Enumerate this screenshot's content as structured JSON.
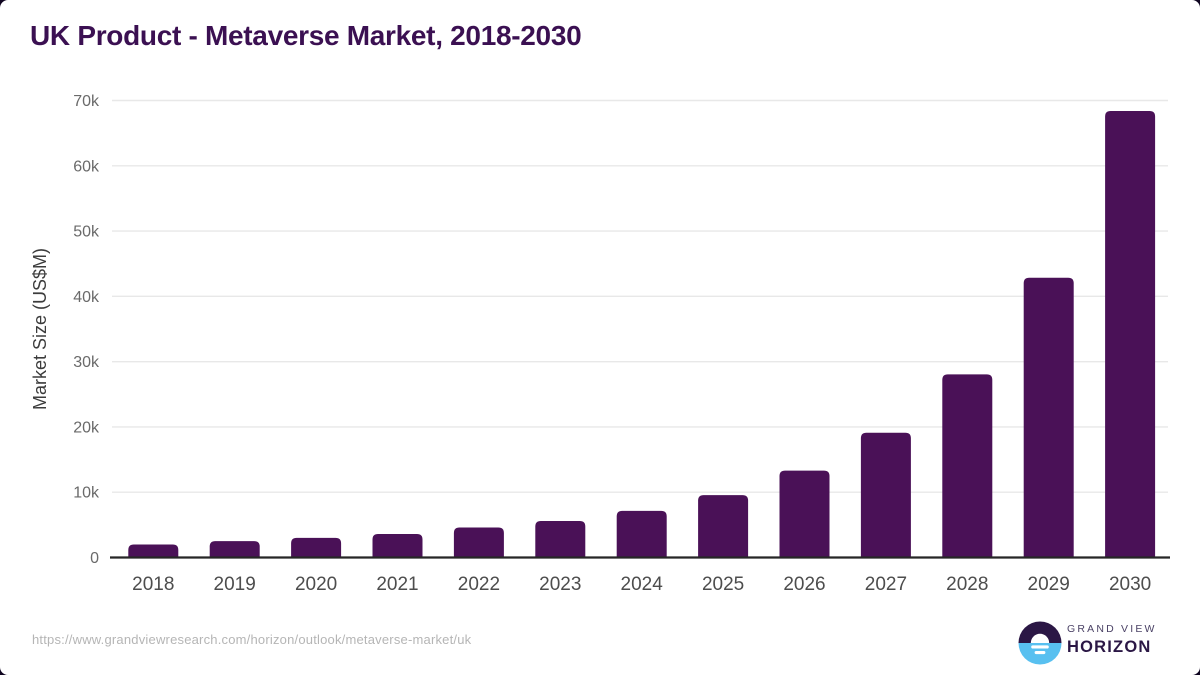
{
  "chart_data": {
    "type": "bar",
    "title": "UK Product - Metaverse Market, 2018-2030",
    "categories": [
      "2018",
      "2019",
      "2020",
      "2021",
      "2022",
      "2023",
      "2024",
      "2025",
      "2026",
      "2027",
      "2028",
      "2029",
      "2030"
    ],
    "values": [
      2000,
      2500,
      3000,
      3600,
      4600,
      5600,
      7150,
      9550,
      13300,
      19100,
      28050,
      42850,
      68400
    ],
    "xlabel": "",
    "ylabel": "Market Size (US$M)",
    "ylim": [
      0,
      70000
    ],
    "yticks": [
      {
        "value": 0,
        "label": "0"
      },
      {
        "value": 10000,
        "label": "10k"
      },
      {
        "value": 20000,
        "label": "20k"
      },
      {
        "value": 30000,
        "label": "30k"
      },
      {
        "value": 40000,
        "label": "40k"
      },
      {
        "value": 50000,
        "label": "50k"
      },
      {
        "value": 60000,
        "label": "60k"
      },
      {
        "value": 70000,
        "label": "70k"
      }
    ],
    "grid": "horizontal",
    "legend": "none",
    "colors": {
      "bar": "#4A1157",
      "grid": "#E8E8E8",
      "axis": "#262626",
      "tick": "#6A6A6A",
      "xtick": "#4D4D4D",
      "ylabel": "#3C3C3C"
    }
  },
  "footer": {
    "source_url": "https://www.grandviewresearch.com/horizon/outlook/metaverse-market/uk",
    "logo_top": "GRAND VIEW",
    "logo_bottom": "HORIZON"
  },
  "colors": {
    "title-color": "#3B1052",
    "url-color": "#B5B5B5",
    "logo-gv-color": "#4B4266",
    "logo-horizon-color": "#2B1745",
    "logo-blue": "#58C0F0",
    "logo-dark": "#2B1745"
  }
}
